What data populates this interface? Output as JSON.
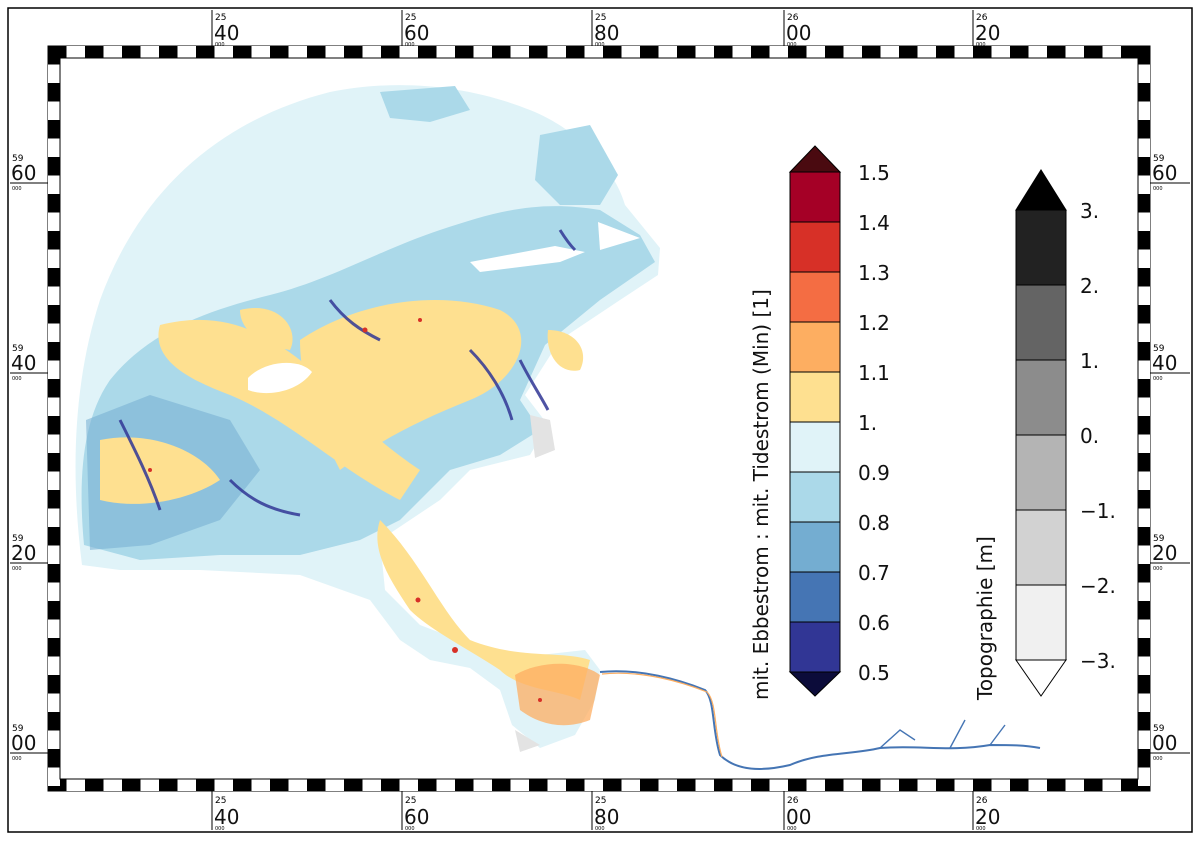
{
  "frame": {
    "top_ticks": [
      {
        "sup": "25",
        "main": "40",
        "sub": "000"
      },
      {
        "sup": "25",
        "main": "60",
        "sub": "000"
      },
      {
        "sup": "25",
        "main": "80",
        "sub": "000"
      },
      {
        "sup": "26",
        "main": "00",
        "sub": "000"
      },
      {
        "sup": "26",
        "main": "20",
        "sub": "000"
      }
    ],
    "side_ticks": [
      {
        "sup": "59",
        "main": "60",
        "sub": "000"
      },
      {
        "sup": "59",
        "main": "40",
        "sub": "000"
      },
      {
        "sup": "59",
        "main": "20",
        "sub": "000"
      },
      {
        "sup": "59",
        "main": "00",
        "sub": "000"
      }
    ]
  },
  "legend_ratio": {
    "title": "mit. Ebbestrom : mit. Tidestrom (Min) [1]",
    "labels": [
      "1.5",
      "1.4",
      "1.3",
      "1.2",
      "1.1",
      "1.",
      "0.9",
      "0.8",
      "0.7",
      "0.6",
      "0.5"
    ],
    "colors": [
      "#a50026",
      "#d73027",
      "#f46d43",
      "#fdae61",
      "#fee090",
      "#e0f3f8",
      "#abd9e9",
      "#74add1",
      "#4575b4",
      "#313695"
    ],
    "arrow_top": "#4a0a10",
    "arrow_bottom": "#0c0c3a"
  },
  "legend_topo": {
    "title": "Topographie [m]",
    "labels": [
      "3.",
      "2.",
      "1.",
      "0.",
      "−1.",
      "−2.",
      "−3."
    ],
    "colors": [
      "#222222",
      "#646464",
      "#8c8c8c",
      "#b4b4b4",
      "#d2d2d2",
      "#f0f0f0"
    ],
    "arrow_top": "#000000",
    "arrow_bottom": "#ffffff"
  },
  "map": {
    "colors": {
      "land": "#e3e3e3",
      "water_light": "#e0f3f8",
      "water_mid": "#abd9e9",
      "water_deep": "#74add1",
      "water_dark": "#313695",
      "sand": "#fee090",
      "sand_orange": "#fdae61",
      "hot": "#d73027"
    }
  }
}
